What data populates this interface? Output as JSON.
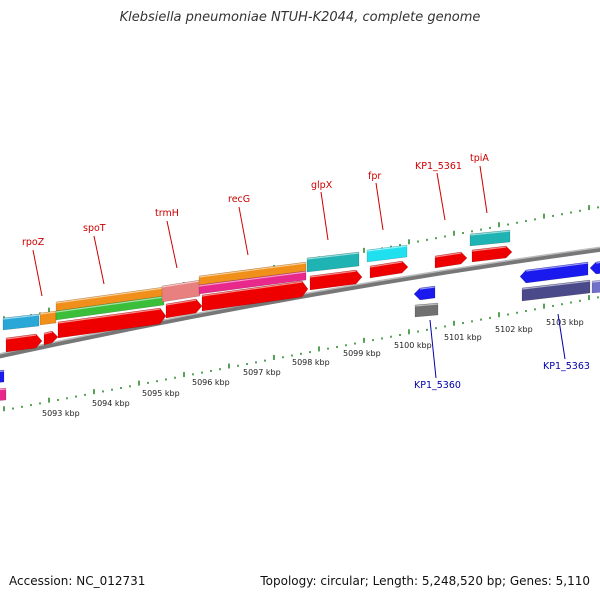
{
  "title": "Klebsiella pneumoniae NTUH-K2044, complete genome",
  "footer": {
    "accession": "Accession: NC_012731",
    "summary": "Topology: circular; Length: 5,248,520 bp; Genes: 5,110"
  },
  "colors": {
    "backbone": "#8a8a8a",
    "tick": "#2e8b2e",
    "label_top": "#cc0000",
    "label_bottom": "#0000aa"
  },
  "ticks": [
    {
      "label": "5093 kbp"
    },
    {
      "label": "5094 kbp"
    },
    {
      "label": "5095 kbp"
    },
    {
      "label": "5096 kbp"
    },
    {
      "label": "5097 kbp"
    },
    {
      "label": "5098 kbp"
    },
    {
      "label": "5099 kbp"
    },
    {
      "label": "5100 kbp"
    },
    {
      "label": "5101 kbp"
    },
    {
      "label": "5102 kbp"
    },
    {
      "label": "5103 kbp"
    }
  ],
  "gene_labels_top": [
    {
      "text": "rpoZ"
    },
    {
      "text": "spoT"
    },
    {
      "text": "trmH"
    },
    {
      "text": "recG"
    },
    {
      "text": "glpX"
    },
    {
      "text": "fpr"
    },
    {
      "text": "KP1_5361"
    },
    {
      "text": "tpiA"
    }
  ],
  "gene_labels_bottom": [
    {
      "text": "KP1_5360"
    },
    {
      "text": "KP1_5363"
    }
  ]
}
